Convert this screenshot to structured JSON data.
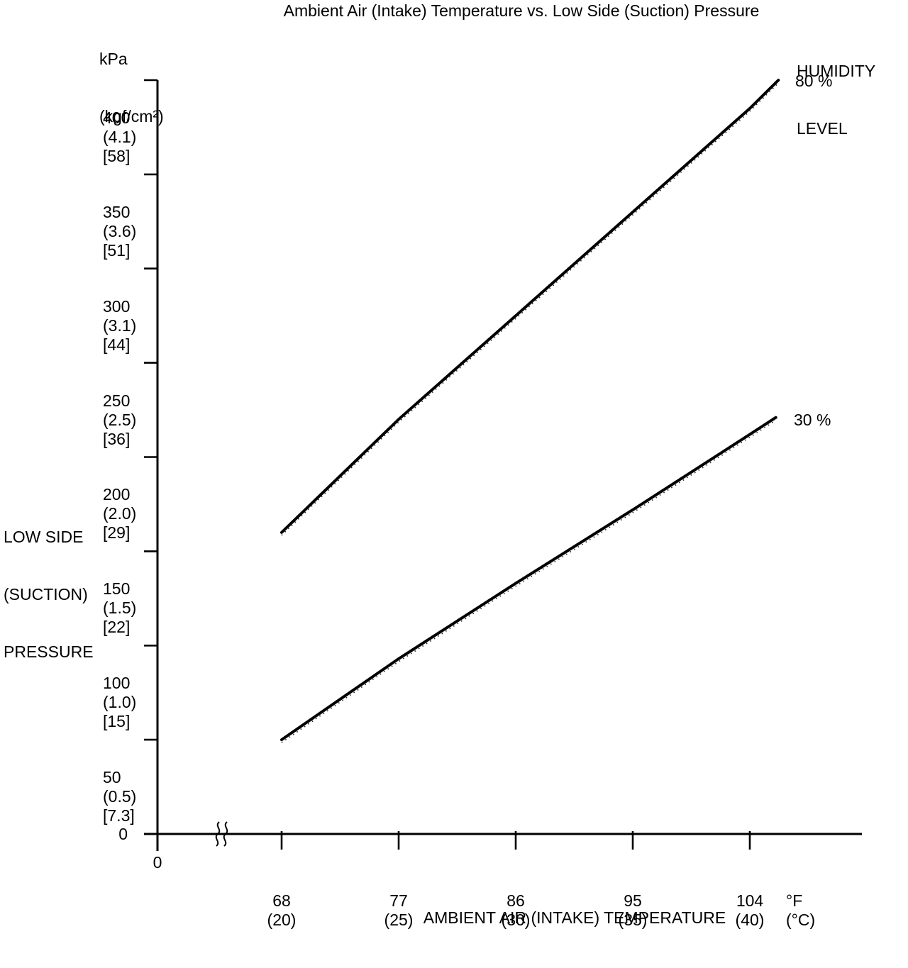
{
  "title": "Ambient Air (Intake) Temperature vs. Low Side (Suction) Pressure",
  "y_axis": {
    "unit_lines": [
      "kPa",
      "(kgf/cm²)"
    ],
    "axis_title_lines": [
      "LOW SIDE",
      "(SUCTION)",
      "PRESSURE"
    ],
    "origin_label": "0",
    "ticks": [
      {
        "kpa": "400",
        "kgf": "(4.1)",
        "bracket": "[58]"
      },
      {
        "kpa": "350",
        "kgf": "(3.6)",
        "bracket": "[51]"
      },
      {
        "kpa": "300",
        "kgf": "(3.1)",
        "bracket": "[44]"
      },
      {
        "kpa": "250",
        "kgf": "(2.5)",
        "bracket": "[36]"
      },
      {
        "kpa": "200",
        "kgf": "(2.0)",
        "bracket": "[29]"
      },
      {
        "kpa": "150",
        "kgf": "(1.5)",
        "bracket": "[22]"
      },
      {
        "kpa": "100",
        "kgf": "(1.0)",
        "bracket": "[15]"
      },
      {
        "kpa": "50",
        "kgf": "(0.5)",
        "bracket": "[7.3]"
      }
    ]
  },
  "x_axis": {
    "title": "AMBIENT AIR (INTAKE) TEMPERATURE",
    "origin_label": "0",
    "unit_lines": [
      "°F",
      "(°C)"
    ],
    "ticks": [
      {
        "f": "68",
        "c": "(20)"
      },
      {
        "f": "77",
        "c": "(25)"
      },
      {
        "f": "86",
        "c": "(30)"
      },
      {
        "f": "95",
        "c": "(35)"
      },
      {
        "f": "104",
        "c": "(40)"
      }
    ]
  },
  "legend": {
    "title_lines": [
      "HUMIDITY",
      "LEVEL"
    ],
    "series": [
      {
        "label": "80 %"
      },
      {
        "label": "30 %"
      }
    ]
  },
  "chart_data": {
    "type": "line",
    "title": "Ambient Air (Intake) Temperature vs. Low Side (Suction) Pressure",
    "xlabel": "AMBIENT AIR (INTAKE) TEMPERATURE",
    "ylabel": "LOW SIDE (SUCTION) PRESSURE",
    "x_unit": "°F (°C)",
    "y_unit_display": "kPa (kgf/cm²) [bracketed value]",
    "x": [
      68,
      77,
      86,
      95,
      104
    ],
    "x_celsius": [
      20,
      25,
      30,
      35,
      40
    ],
    "ylim": [
      0,
      400
    ],
    "y_ticks_kpa": [
      400,
      350,
      300,
      250,
      200,
      150,
      100,
      50
    ],
    "x_axis_break_between_0_and_68": true,
    "legend_title": "HUMIDITY LEVEL",
    "legend_position": "at line ends, right side",
    "grid": false,
    "series": [
      {
        "name": "80 %",
        "points_f_kpa": [
          [
            68,
            160
          ],
          [
            77,
            220
          ],
          [
            86,
            275
          ],
          [
            95,
            330
          ],
          [
            104,
            385
          ],
          [
            106.2,
            400
          ]
        ]
      },
      {
        "name": "30 %",
        "points_f_kpa": [
          [
            68,
            50
          ],
          [
            77,
            93
          ],
          [
            86,
            133
          ],
          [
            95,
            172
          ],
          [
            104,
            212
          ],
          [
            106,
            221
          ]
        ]
      }
    ]
  }
}
